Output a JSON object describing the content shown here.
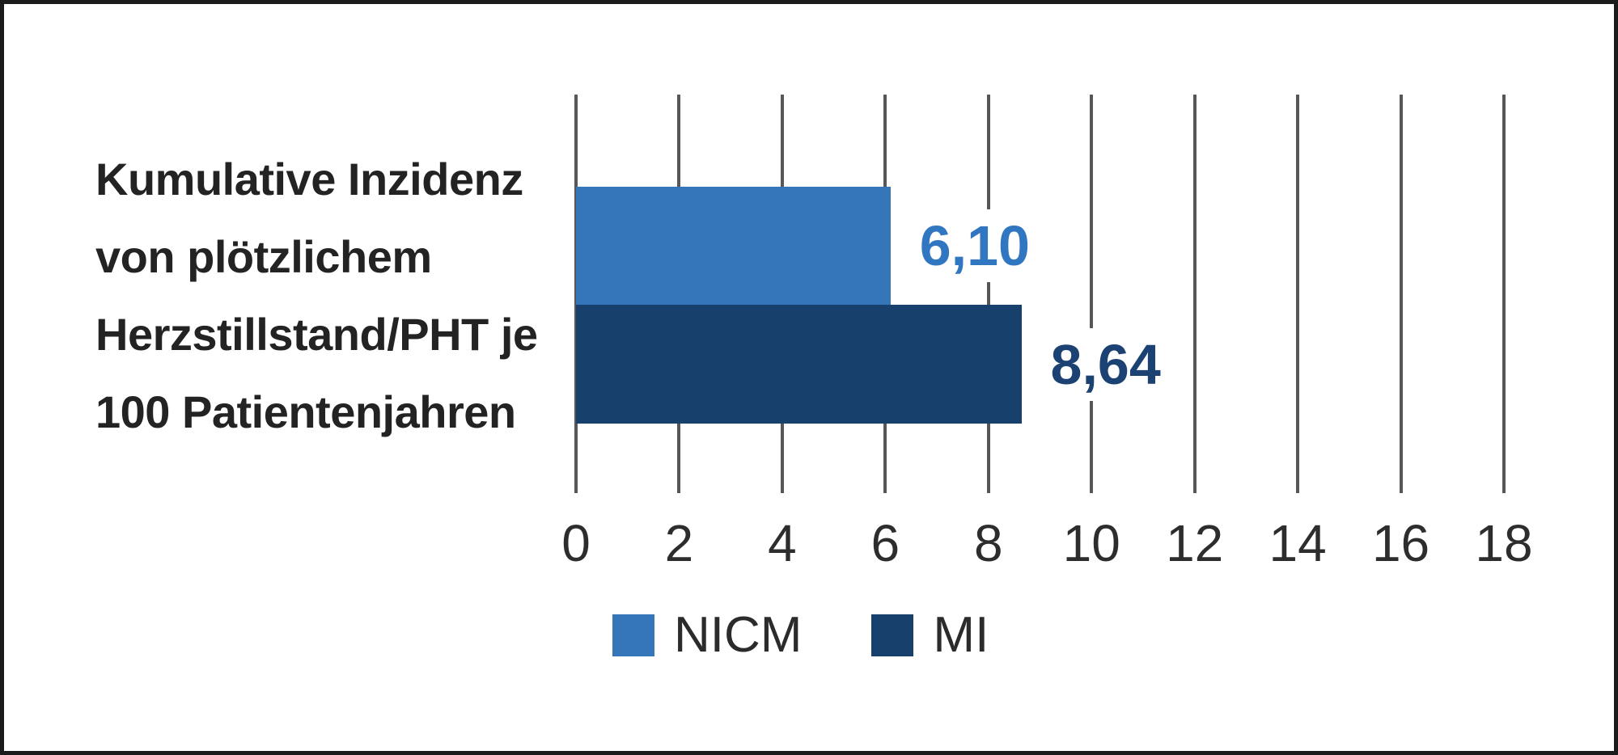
{
  "frame": {
    "border_color": "#1b1b1b",
    "background": "#ffffff"
  },
  "y_axis_label": {
    "lines": [
      "Kumulative Inzidenz",
      "von plötzlichem",
      "Herzstillstand/PHT je",
      "100 Patientenjahren"
    ],
    "color": "#232323"
  },
  "chart_data": {
    "type": "bar",
    "orientation": "horizontal",
    "title": "",
    "ylabel": "Kumulative Inzidenz von plötzlichem Herzstillstand/PHT je 100 Patientenjahren",
    "xlabel": "",
    "categories": [
      "NICM",
      "MI"
    ],
    "series": [
      {
        "name": "NICM",
        "value": 6.1,
        "value_label": "6,10",
        "bar_color": "#3575BA",
        "label_color": "#3176C1"
      },
      {
        "name": "MI",
        "value": 8.64,
        "value_label": "8,64",
        "bar_color": "#18406D",
        "label_color": "#1B4272"
      }
    ],
    "x_ticks": [
      "0",
      "2",
      "4",
      "6",
      "8",
      "10",
      "12",
      "14",
      "16",
      "18"
    ],
    "xlim": [
      0,
      18
    ],
    "grid": "vertical-gridlines",
    "gridline_color": "#57575a",
    "axis_text_color": "#2d2d2d",
    "legend": [
      "NICM",
      "MI"
    ],
    "legend_position": "bottom"
  }
}
